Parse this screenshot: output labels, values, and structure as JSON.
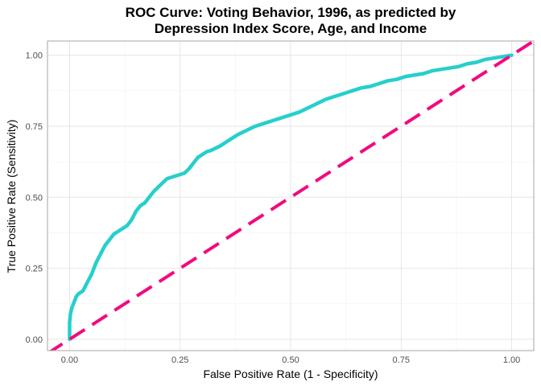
{
  "chart_data": {
    "type": "line",
    "title_lines": [
      "ROC Curve:  Voting Behavior, 1996, as predicted by",
      "Depression Index Score, Age, and Income"
    ],
    "xlabel": "False Positive Rate (1 - Specificity)",
    "ylabel": "True Positive Rate (Sensitivity)",
    "xlim": [
      -0.05,
      1.05
    ],
    "ylim": [
      -0.04,
      1.05
    ],
    "x_ticks": [
      0,
      0.25,
      0.5,
      0.75,
      1
    ],
    "x_tick_labels": [
      "0.00",
      "0.25",
      "0.50",
      "0.75",
      "1.00"
    ],
    "y_ticks": [
      0,
      0.25,
      0.5,
      0.75,
      1
    ],
    "y_tick_labels": [
      "0.00",
      "0.25",
      "0.50",
      "0.75",
      "1.00"
    ],
    "grid": true,
    "series": [
      {
        "style": "solid",
        "color": "#26CFCC",
        "x": [
          0,
          0,
          0.002,
          0.005,
          0.01,
          0.015,
          0.02,
          0.03,
          0.04,
          0.05,
          0.06,
          0.07,
          0.08,
          0.09,
          0.1,
          0.11,
          0.12,
          0.13,
          0.14,
          0.15,
          0.16,
          0.17,
          0.18,
          0.19,
          0.2,
          0.21,
          0.22,
          0.23,
          0.24,
          0.25,
          0.26,
          0.27,
          0.28,
          0.29,
          0.3,
          0.31,
          0.32,
          0.34,
          0.36,
          0.38,
          0.4,
          0.42,
          0.44,
          0.46,
          0.48,
          0.5,
          0.52,
          0.54,
          0.56,
          0.58,
          0.6,
          0.62,
          0.64,
          0.66,
          0.68,
          0.7,
          0.72,
          0.74,
          0.76,
          0.78,
          0.8,
          0.82,
          0.84,
          0.86,
          0.88,
          0.9,
          0.92,
          0.94,
          0.96,
          0.98,
          1
        ],
        "y": [
          0,
          0.06,
          0.09,
          0.11,
          0.13,
          0.15,
          0.16,
          0.17,
          0.2,
          0.23,
          0.27,
          0.3,
          0.33,
          0.35,
          0.37,
          0.38,
          0.39,
          0.4,
          0.42,
          0.45,
          0.47,
          0.48,
          0.5,
          0.52,
          0.535,
          0.55,
          0.565,
          0.57,
          0.575,
          0.58,
          0.585,
          0.6,
          0.62,
          0.64,
          0.65,
          0.66,
          0.665,
          0.68,
          0.7,
          0.72,
          0.735,
          0.75,
          0.76,
          0.77,
          0.78,
          0.79,
          0.8,
          0.815,
          0.83,
          0.845,
          0.855,
          0.865,
          0.875,
          0.885,
          0.89,
          0.9,
          0.91,
          0.915,
          0.925,
          0.93,
          0.935,
          0.945,
          0.95,
          0.955,
          0.96,
          0.97,
          0.975,
          0.985,
          0.99,
          0.995,
          1
        ]
      },
      {
        "style": "dashed",
        "color": "#F20A7E",
        "x": [
          -0.05,
          1.05
        ],
        "y": [
          -0.05,
          1.05
        ]
      }
    ]
  }
}
